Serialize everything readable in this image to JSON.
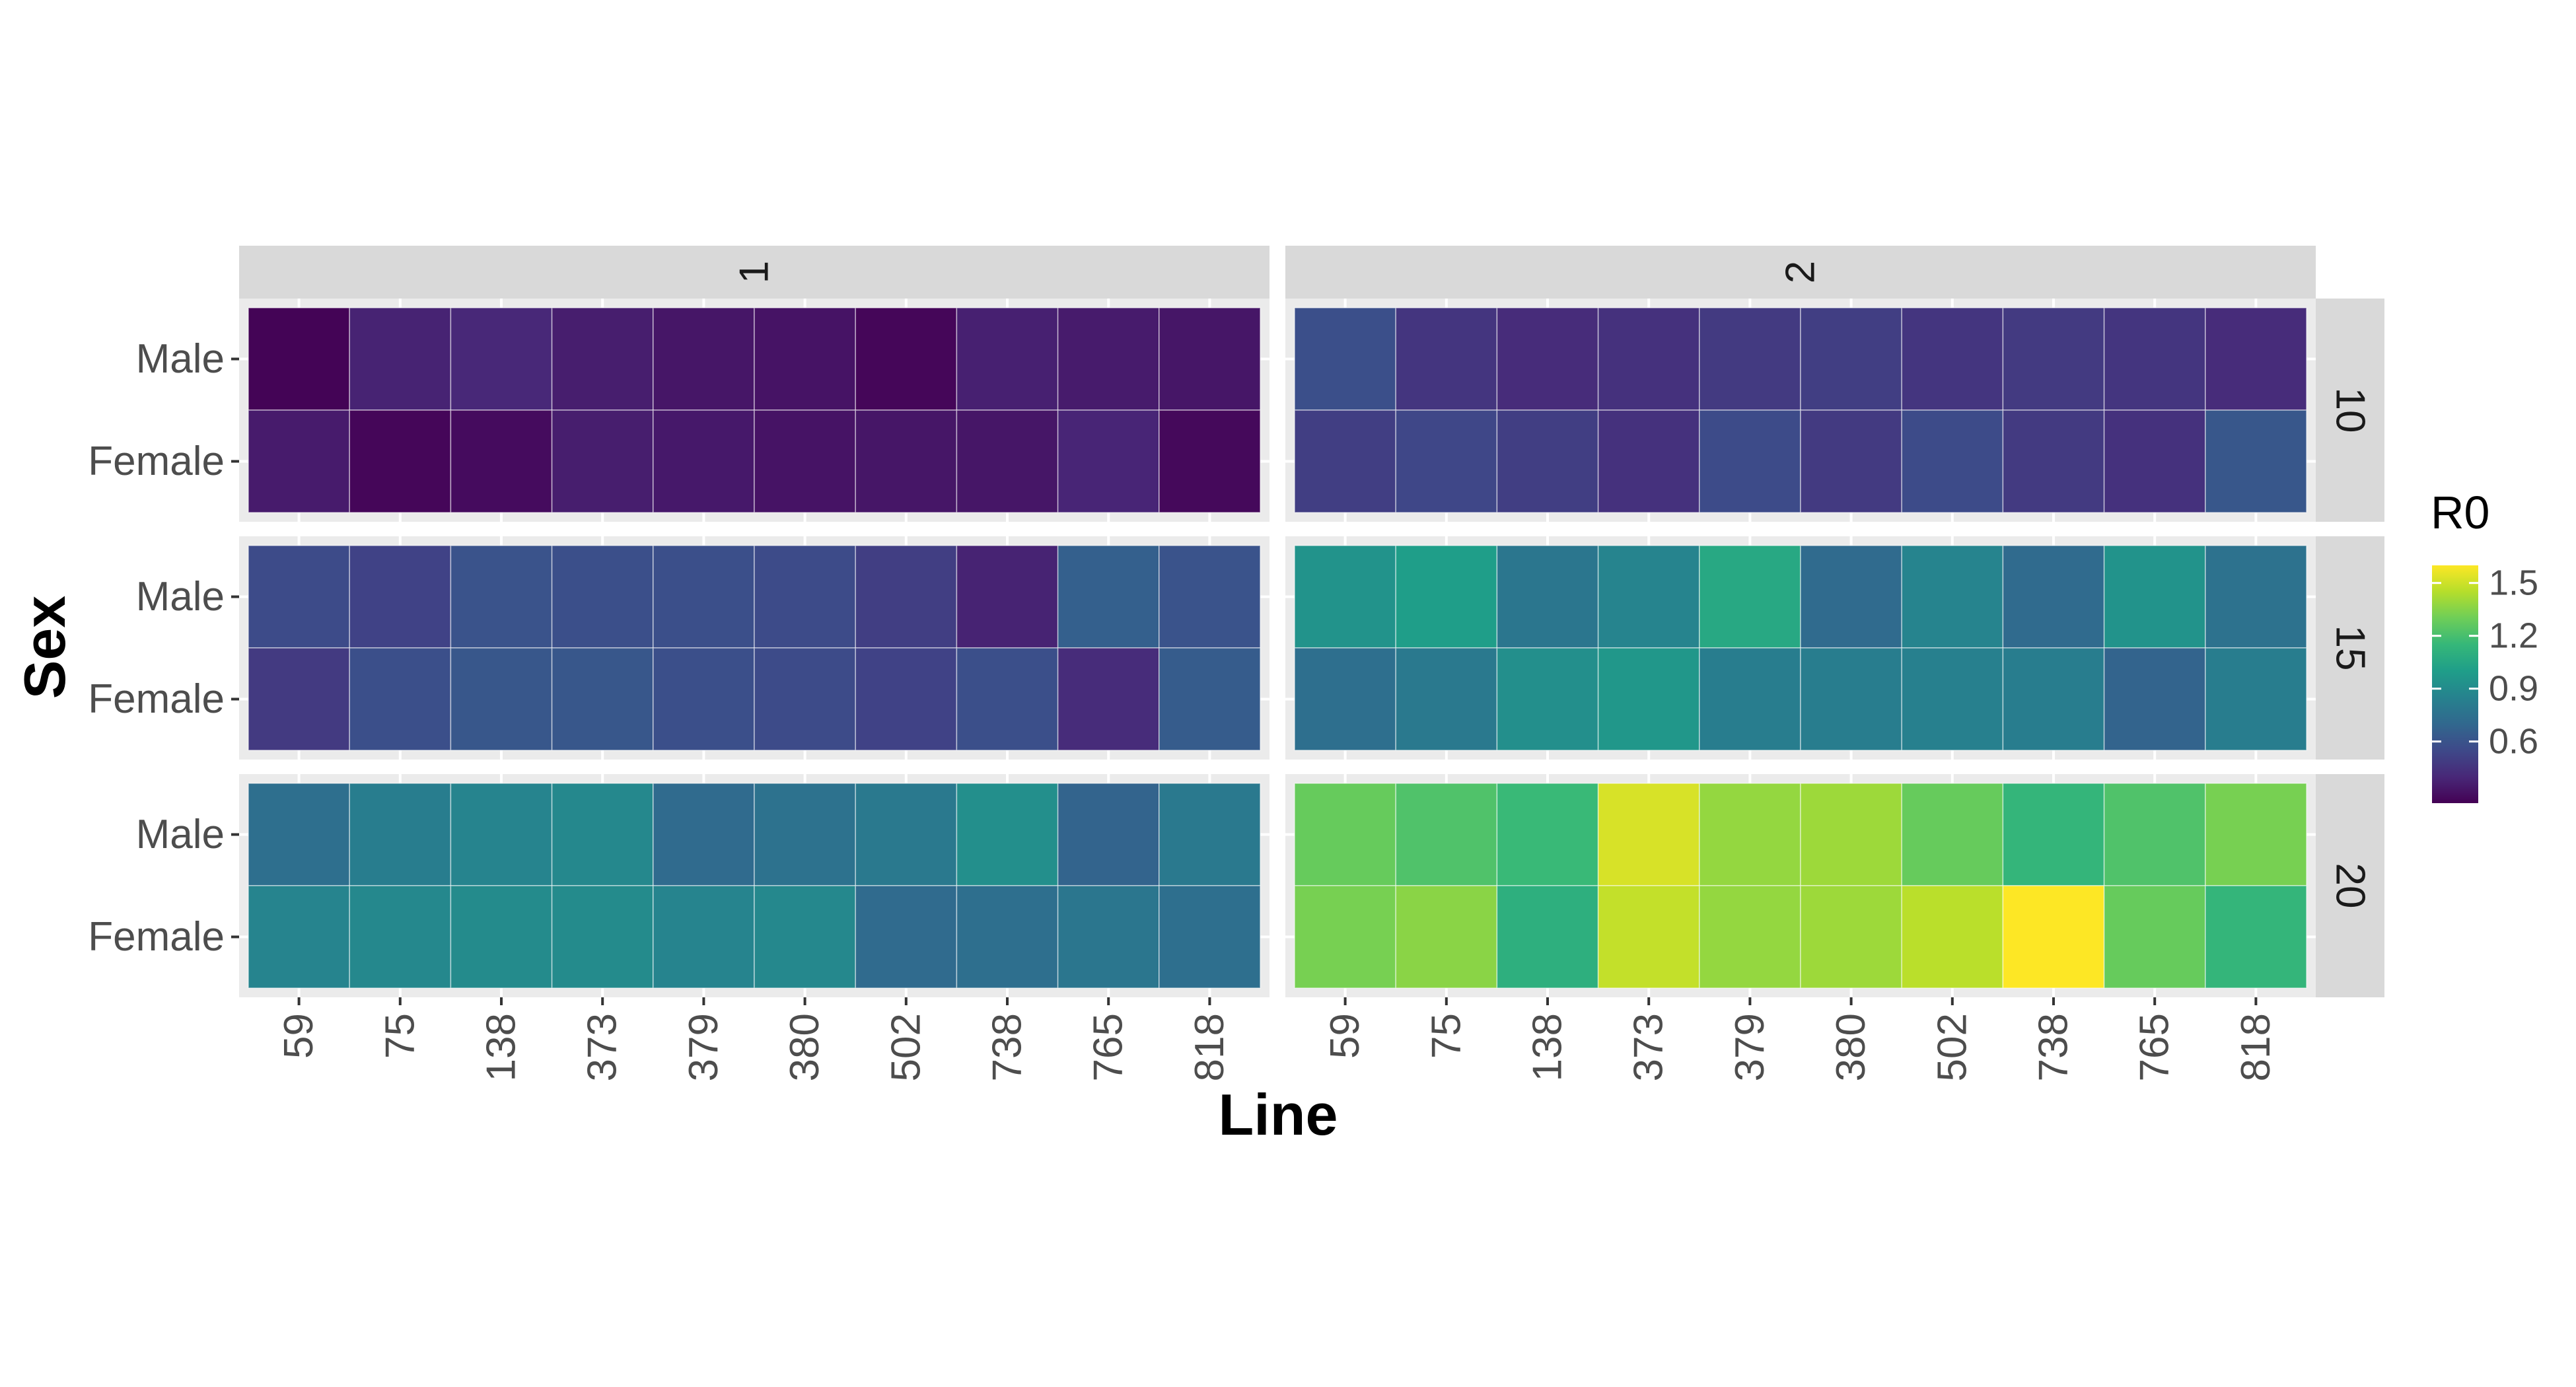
{
  "chart_data": {
    "type": "heatmap",
    "xlabel": "Line",
    "ylabel": "Sex",
    "x_categories": [
      "59",
      "75",
      "138",
      "373",
      "379",
      "380",
      "502",
      "738",
      "765",
      "818"
    ],
    "y_categories": [
      "Male",
      "Female"
    ],
    "column_facet": [
      "1",
      "2"
    ],
    "row_facet": [
      "10",
      "15",
      "20"
    ],
    "legend": {
      "title": "R0",
      "ticks": [
        "0.6",
        "0.9",
        "1.2",
        "1.5"
      ],
      "tick_values": [
        0.6,
        0.9,
        1.2,
        1.5
      ],
      "range": [
        0.25,
        1.6
      ],
      "colormap": "viridis",
      "placement": "right"
    },
    "panels": [
      {
        "col": "1",
        "row": "10",
        "Male": [
          0.26,
          0.38,
          0.4,
          0.36,
          0.33,
          0.32,
          0.27,
          0.37,
          0.35,
          0.33
        ],
        "Female": [
          0.35,
          0.27,
          0.29,
          0.36,
          0.34,
          0.32,
          0.33,
          0.33,
          0.39,
          0.28
        ]
      },
      {
        "col": "2",
        "row": "10",
        "Male": [
          0.58,
          0.46,
          0.42,
          0.44,
          0.48,
          0.5,
          0.46,
          0.48,
          0.46,
          0.42
        ],
        "Female": [
          0.5,
          0.54,
          0.5,
          0.44,
          0.56,
          0.48,
          0.56,
          0.48,
          0.44,
          0.62
        ]
      },
      {
        "col": "1",
        "row": "15",
        "Male": [
          0.56,
          0.52,
          0.6,
          0.58,
          0.58,
          0.56,
          0.5,
          0.38,
          0.66,
          0.6
        ],
        "Female": [
          0.48,
          0.58,
          0.62,
          0.62,
          0.58,
          0.56,
          0.52,
          0.58,
          0.42,
          0.64
        ]
      },
      {
        "col": "2",
        "row": "15",
        "Male": [
          0.94,
          1.0,
          0.78,
          0.86,
          1.06,
          0.72,
          0.86,
          0.72,
          0.94,
          0.76
        ],
        "Female": [
          0.74,
          0.8,
          0.92,
          0.96,
          0.82,
          0.82,
          0.84,
          0.82,
          0.68,
          0.82
        ]
      },
      {
        "col": "1",
        "row": "20",
        "Male": [
          0.74,
          0.82,
          0.86,
          0.88,
          0.72,
          0.76,
          0.8,
          0.92,
          0.68,
          0.8
        ],
        "Female": [
          0.86,
          0.88,
          0.9,
          0.9,
          0.86,
          0.88,
          0.72,
          0.74,
          0.78,
          0.74
        ]
      },
      {
        "col": "2",
        "row": "20",
        "Male": [
          1.28,
          1.22,
          1.16,
          1.52,
          1.38,
          1.4,
          1.28,
          1.14,
          1.22,
          1.32
        ],
        "Female": [
          1.32,
          1.36,
          1.1,
          1.48,
          1.38,
          1.4,
          1.46,
          1.6,
          1.28,
          1.14
        ]
      }
    ]
  }
}
